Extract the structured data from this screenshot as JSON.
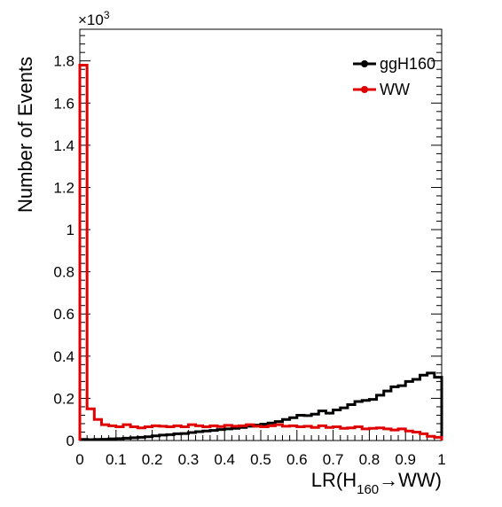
{
  "chart_data": {
    "type": "line",
    "style": "step-histogram",
    "xlabel_main": "LR(H",
    "xlabel_sub": "160",
    "xlabel_rest": "→WW)",
    "ylabel": "Number of Events",
    "y_multiplier": "×10",
    "y_multiplier_exp": "3",
    "xlim": [
      0,
      1
    ],
    "ylim": [
      0,
      1.95
    ],
    "x_ticks": [
      0,
      0.1,
      0.2,
      0.3,
      0.4,
      0.5,
      0.6,
      0.7,
      0.8,
      0.9,
      1
    ],
    "x_tick_labels": [
      "0",
      "0.1",
      "0.2",
      "0.3",
      "0.4",
      "0.5",
      "0.6",
      "0.7",
      "0.8",
      "0.9",
      "1"
    ],
    "y_ticks": [
      0,
      0.2,
      0.4,
      0.6,
      0.8,
      1,
      1.2,
      1.4,
      1.6,
      1.8
    ],
    "y_tick_labels": [
      "0",
      "0.2",
      "0.4",
      "0.6",
      "0.8",
      "1",
      "1.2",
      "1.4",
      "1.6",
      "1.8"
    ],
    "bin_width": 0.02,
    "legend_position": "top-right",
    "series": [
      {
        "name": "ggH160",
        "color": "#000000",
        "values": [
          0.005,
          0.004,
          0.005,
          0.006,
          0.008,
          0.009,
          0.011,
          0.013,
          0.015,
          0.018,
          0.022,
          0.026,
          0.028,
          0.032,
          0.033,
          0.038,
          0.042,
          0.045,
          0.048,
          0.052,
          0.055,
          0.058,
          0.062,
          0.068,
          0.073,
          0.078,
          0.083,
          0.09,
          0.1,
          0.108,
          0.12,
          0.118,
          0.125,
          0.14,
          0.13,
          0.145,
          0.155,
          0.17,
          0.185,
          0.19,
          0.195,
          0.215,
          0.235,
          0.255,
          0.26,
          0.28,
          0.29,
          0.31,
          0.32,
          0.3,
          0.145
        ]
      },
      {
        "name": "WW",
        "color": "#e00000",
        "values": [
          1.78,
          0.15,
          0.1,
          0.075,
          0.07,
          0.065,
          0.075,
          0.065,
          0.06,
          0.065,
          0.07,
          0.068,
          0.065,
          0.07,
          0.065,
          0.075,
          0.07,
          0.065,
          0.07,
          0.066,
          0.072,
          0.068,
          0.07,
          0.075,
          0.068,
          0.065,
          0.07,
          0.075,
          0.068,
          0.07,
          0.065,
          0.068,
          0.062,
          0.07,
          0.062,
          0.065,
          0.058,
          0.06,
          0.065,
          0.055,
          0.058,
          0.06,
          0.055,
          0.05,
          0.055,
          0.045,
          0.04,
          0.032,
          0.02,
          0.015,
          0.01
        ]
      }
    ]
  }
}
